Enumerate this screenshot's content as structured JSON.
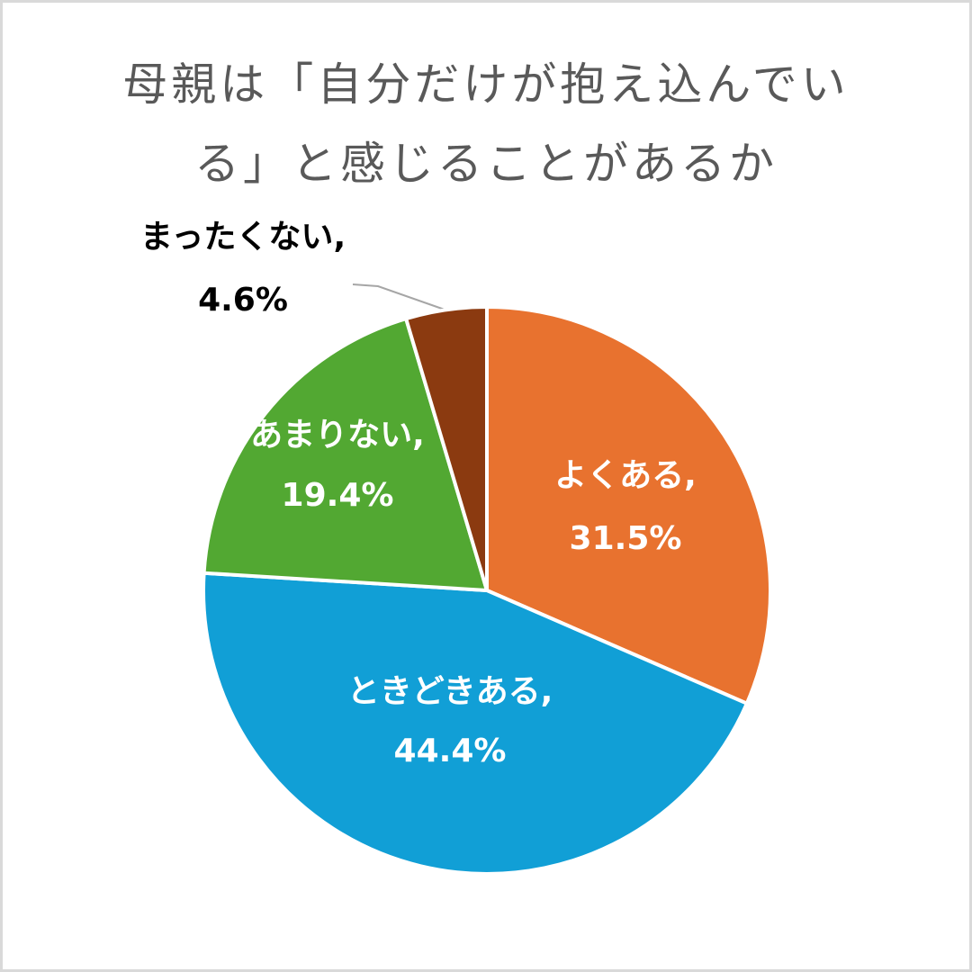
{
  "chart_data": {
    "type": "pie",
    "title": "母親は「自分だけが抱え込んでいる」と感じることがあるか",
    "categories": [
      "よくある",
      "ときどきある",
      "あまりない",
      "まったくない"
    ],
    "values": [
      31.5,
      44.4,
      19.4,
      4.6
    ],
    "value_labels": [
      "31.5%",
      "44.4%",
      "19.4%",
      "4.6%"
    ],
    "label_separator": ",",
    "colors": [
      "#e8722f",
      "#119fd6",
      "#52a832",
      "#8b3a10"
    ]
  }
}
